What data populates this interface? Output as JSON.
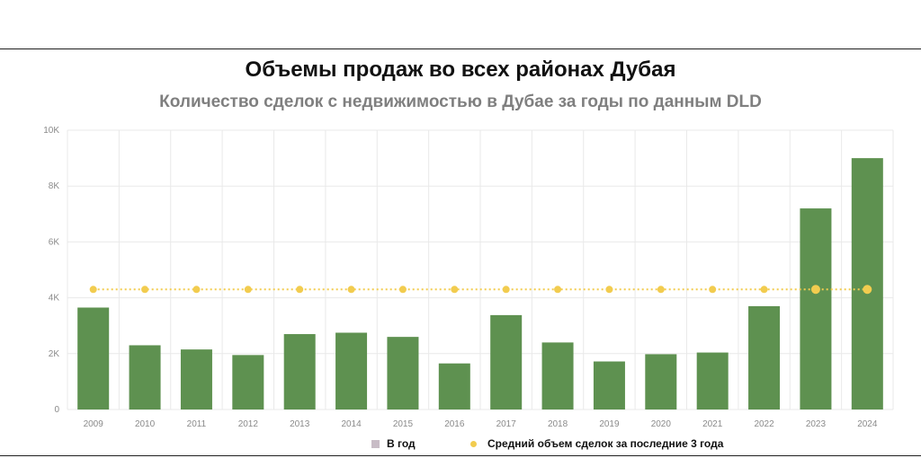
{
  "header": {
    "title": "Объемы продаж во всех районах Дубая",
    "subtitle": "Количество сделок с недвижимостью в Дубае за годы по данным DLD"
  },
  "colors": {
    "bar": "#5e9150",
    "average_line": "#f2cc4f",
    "grid": "#e9e9e9",
    "legend_bar_key": "#c8bcc6"
  },
  "chart_data": {
    "type": "bar",
    "title": "Объемы продаж во всех районах Дубая",
    "subtitle": "Количество сделок с недвижимостью в Дубае за годы по данным DLD",
    "categories": [
      "2009",
      "2010",
      "2011",
      "2012",
      "2013",
      "2014",
      "2015",
      "2016",
      "2017",
      "2018",
      "2019",
      "2020",
      "2021",
      "2022",
      "2023",
      "2024"
    ],
    "series": [
      {
        "name": "В год",
        "type": "bar",
        "values": [
          3650,
          2300,
          2150,
          1950,
          2700,
          2750,
          2600,
          1650,
          3380,
          2400,
          1720,
          1980,
          2040,
          3700,
          7200,
          9000
        ]
      },
      {
        "name": "Средний объем сделок за последние 3 года",
        "type": "line",
        "style": "dotted",
        "values": [
          4300,
          4300,
          4300,
          4300,
          4300,
          4300,
          4300,
          4300,
          4300,
          4300,
          4300,
          4300,
          4300,
          4300,
          4300,
          4300
        ]
      }
    ],
    "ylim": [
      0,
      10000
    ],
    "yticks": [
      0,
      2000,
      4000,
      6000,
      8000,
      10000
    ],
    "ytick_labels": [
      "0",
      "2K",
      "4K",
      "6K",
      "8K",
      "10K"
    ],
    "xlabel": "",
    "ylabel": "",
    "grid": true,
    "legend_position": "bottom"
  }
}
